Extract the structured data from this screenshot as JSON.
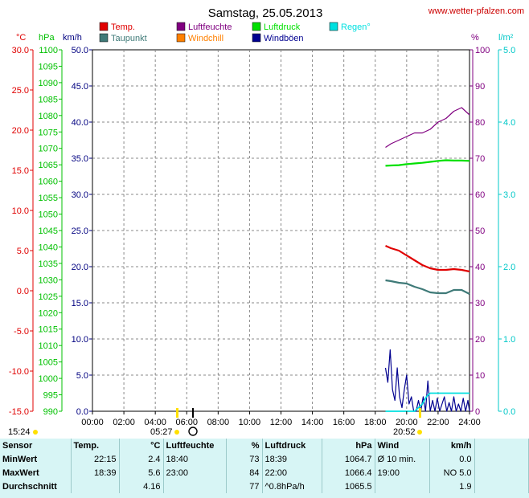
{
  "header": {
    "title": "Samstag, 25.05.2013",
    "website": "www.wetter-pfalzen.com"
  },
  "colors": {
    "temp": "#e00000",
    "dewpoint": "#3f7a78",
    "humidity": "#800080",
    "windchill": "#ff8000",
    "pressure": "#00e000",
    "gusts": "#000090",
    "rain": "#00e0e0",
    "wind_axis": "#000080"
  },
  "chart_data": {
    "type": "line",
    "title": "Samstag, 25.05.2013",
    "grid": true,
    "legend_position": "top",
    "x": {
      "unit": "hours",
      "range": [
        0,
        24
      ],
      "ticks": [
        "00:00",
        "02:00",
        "04:00",
        "06:00",
        "08:00",
        "10:00",
        "12:00",
        "14:00",
        "16:00",
        "18:00",
        "20:00",
        "22:00",
        "24:00"
      ]
    },
    "axes": {
      "temp": {
        "label": "°C",
        "range": [
          -15,
          30
        ],
        "ticks": [
          "30.0",
          "25.0",
          "20.0",
          "15.0",
          "10.0",
          "5.0",
          "0.0",
          "-5.0",
          "-10.0",
          "-15.0"
        ]
      },
      "pressure": {
        "label": "hPa",
        "range": [
          990,
          1100
        ],
        "ticks": [
          "1100",
          "1095",
          "1090",
          "1085",
          "1080",
          "1075",
          "1070",
          "1065",
          "1060",
          "1055",
          "1050",
          "1045",
          "1040",
          "1035",
          "1030",
          "1025",
          "1020",
          "1015",
          "1010",
          "1005",
          "1000",
          "995",
          "990"
        ]
      },
      "wind": {
        "label": "km/h",
        "range": [
          0,
          50
        ],
        "ticks": [
          "50.0",
          "45.0",
          "40.0",
          "35.0",
          "30.0",
          "25.0",
          "20.0",
          "15.0",
          "10.0",
          "5.0",
          "0.0"
        ]
      },
      "humidity": {
        "label": "%",
        "range": [
          0,
          100
        ],
        "ticks": [
          "100",
          "90",
          "80",
          "70",
          "60",
          "50",
          "40",
          "30",
          "20",
          "10",
          "0"
        ]
      },
      "rain": {
        "label": "l/m²",
        "range": [
          0,
          5
        ],
        "ticks": [
          "5.0",
          "4.0",
          "3.0",
          "2.0",
          "1.0",
          "0.0"
        ]
      }
    },
    "legend": [
      {
        "key": "temp",
        "label": "Temp."
      },
      {
        "key": "humidity",
        "label": "Luftfeuchte"
      },
      {
        "key": "pressure",
        "label": "Luftdruck"
      },
      {
        "key": "rain",
        "label": "Regen°"
      },
      {
        "key": "dewpoint",
        "label": "Taupunkt"
      },
      {
        "key": "windchill",
        "label": "Windchill"
      },
      {
        "key": "gusts",
        "label": "Windböen"
      }
    ],
    "series": [
      {
        "key": "temp",
        "name": "Temp.",
        "axis": "temp",
        "x": [
          18.65,
          19.0,
          19.5,
          20.0,
          20.5,
          21.0,
          21.5,
          22.0,
          22.5,
          23.0,
          23.5,
          24.0
        ],
        "y": [
          5.6,
          5.3,
          5.0,
          4.4,
          3.8,
          3.2,
          2.8,
          2.6,
          2.6,
          2.7,
          2.6,
          2.4
        ]
      },
      {
        "key": "dewpoint",
        "name": "Taupunkt",
        "axis": "temp",
        "x": [
          18.65,
          19.0,
          19.5,
          20.0,
          20.5,
          21.0,
          21.5,
          22.0,
          22.5,
          23.0,
          23.5,
          24.0
        ],
        "y": [
          1.3,
          1.2,
          1.0,
          0.9,
          0.5,
          0.2,
          -0.2,
          -0.3,
          -0.3,
          0.1,
          0.1,
          -0.4
        ]
      },
      {
        "key": "humidity",
        "name": "Luftfeuchte",
        "axis": "humidity",
        "x": [
          18.65,
          19.0,
          19.5,
          20.0,
          20.5,
          21.0,
          21.5,
          22.0,
          22.5,
          23.0,
          23.5,
          24.0
        ],
        "y": [
          73,
          74,
          75,
          76,
          77,
          77,
          78,
          80,
          81,
          83,
          84,
          82
        ]
      },
      {
        "key": "pressure",
        "name": "Luftdruck",
        "axis": "pressure",
        "x": [
          18.65,
          19.0,
          19.5,
          20.0,
          20.5,
          21.0,
          21.5,
          22.0,
          22.5,
          23.0,
          23.5,
          24.0
        ],
        "y": [
          1064.7,
          1064.8,
          1064.9,
          1065.2,
          1065.4,
          1065.6,
          1065.9,
          1066.2,
          1066.4,
          1066.3,
          1066.3,
          1066.2
        ]
      },
      {
        "key": "gusts",
        "name": "Windböen",
        "axis": "wind",
        "x": [
          18.65,
          18.8,
          18.95,
          19.1,
          19.25,
          19.4,
          19.55,
          19.7,
          19.85,
          20.0,
          20.15,
          20.3,
          20.45,
          20.6,
          20.75,
          20.9,
          21.05,
          21.2,
          21.35,
          21.5,
          21.65,
          21.8,
          21.95,
          22.1,
          22.25,
          22.4,
          22.55,
          22.7,
          22.85,
          23.0,
          23.15,
          23.3,
          23.45,
          23.6,
          23.75,
          23.9,
          24.0
        ],
        "y": [
          6,
          4,
          8.5,
          3,
          1.5,
          6,
          2,
          0.5,
          3,
          5,
          1,
          2,
          0,
          0,
          1.5,
          0,
          2,
          0,
          4.2,
          0,
          1.5,
          0,
          1.8,
          0,
          1,
          2,
          0,
          1.2,
          0,
          2,
          0,
          1,
          0,
          1.8,
          0,
          1.5,
          0
        ]
      },
      {
        "key": "rain",
        "name": "Regen°",
        "axis": "rain",
        "x": [
          18.65,
          20.5,
          20.75,
          21.0,
          21.25,
          21.5,
          22.0,
          23.0,
          24.0
        ],
        "y": [
          0,
          0,
          0.05,
          0.1,
          0.2,
          0.25,
          0.25,
          0.25,
          0.25
        ]
      }
    ],
    "sun_markers": {
      "sunrise": "05:27",
      "sunset": "20:52",
      "moon_time": "15:24"
    }
  },
  "stats": {
    "headers": [
      "Sensor",
      "Temp.",
      "°C",
      "Luftfeuchte",
      "%",
      "Luftdruck",
      "hPa",
      "Wind",
      "km/h"
    ],
    "rows": [
      [
        "MinWert",
        "22:15",
        "2.4",
        "18:40",
        "73",
        "18:39",
        "1064.7",
        "Ø 10 min.",
        "0.0"
      ],
      [
        "MaxWert",
        "18:39",
        "5.6",
        "23:00",
        "84",
        "22:00",
        "1066.4",
        "19:00",
        "NO 5.0"
      ],
      [
        "Durchschnitt",
        "",
        "4.16",
        "",
        "77",
        "^0.8hPa/h",
        "1065.5",
        "",
        "1.9"
      ]
    ]
  }
}
